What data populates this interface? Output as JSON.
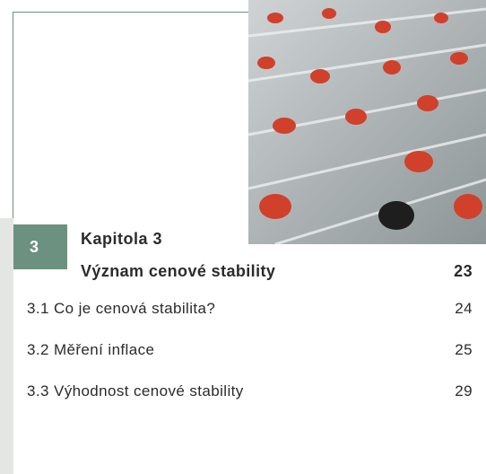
{
  "chapter": {
    "number": "3",
    "label": "Kapitola 3",
    "title": "Význam cenové stability",
    "page": 23
  },
  "entries": [
    {
      "title": "3.1 Co je cenová stabilita?",
      "page": 24
    },
    {
      "title": "3.2 Měření inflace",
      "page": 25
    },
    {
      "title": "3.3 Výhodnost cenové stability",
      "page": 29
    }
  ]
}
